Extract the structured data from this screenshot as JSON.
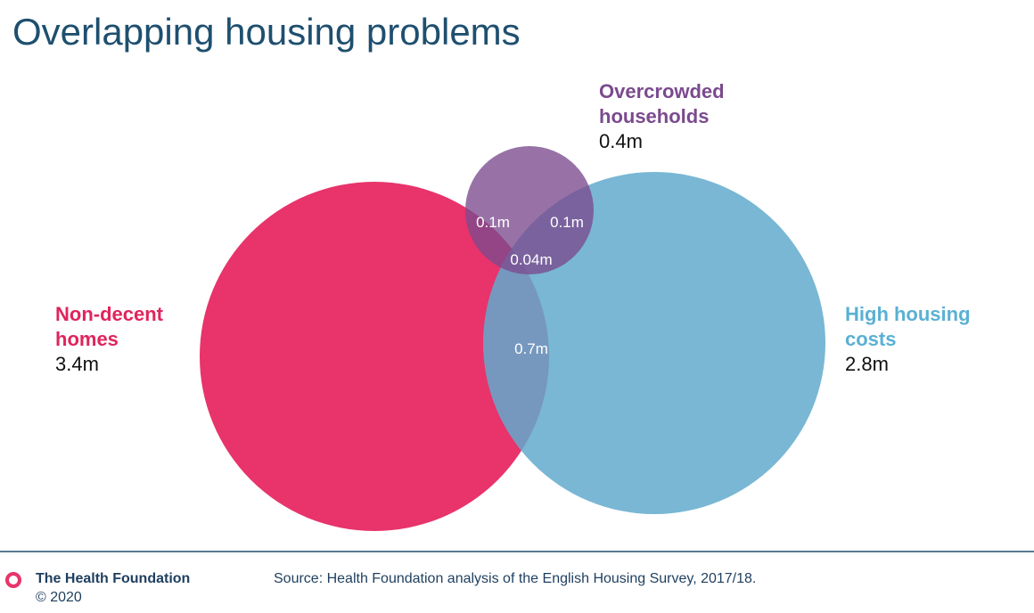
{
  "header": {
    "title": "Overlapping housing problems"
  },
  "sets": [
    {
      "name_lines": [
        "Non-decent",
        "homes"
      ],
      "value": "3.4m"
    },
    {
      "name_lines": [
        "High housing",
        "costs"
      ],
      "value": "2.8m"
    },
    {
      "name_lines": [
        "Overcrowded",
        "households"
      ],
      "value": "0.4m"
    }
  ],
  "intersections": {
    "nondecent_overcrowded": "0.1m",
    "costs_overcrowded": "0.1m",
    "all_three": "0.04m",
    "nondecent_costs": "0.7m"
  },
  "footer": {
    "organisation": "The Health Foundation",
    "copyright": "© 2020",
    "source": "Source: Health Foundation analysis of the English Housing Survey, 2017/18."
  }
}
